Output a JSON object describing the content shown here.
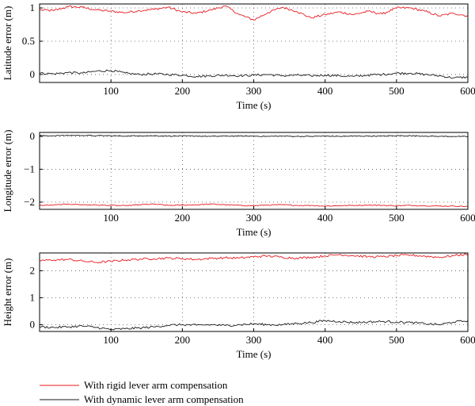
{
  "chart_data": [
    {
      "type": "line",
      "title": "",
      "xlabel": "Time (s)",
      "ylabel": "Latitude error (m)",
      "xlim": [
        0,
        600
      ],
      "ylim": [
        -0.12,
        1.06
      ],
      "xticks": [
        100,
        200,
        300,
        400,
        500,
        600
      ],
      "yticks": [
        0,
        0.5,
        1
      ],
      "yticklabels": [
        "0",
        "0.5",
        "1"
      ],
      "grid": "dotted",
      "series": [
        {
          "name": "With rigid lever arm compensation",
          "color": "#e8191f",
          "x": [
            0,
            20,
            40,
            60,
            80,
            100,
            120,
            140,
            160,
            180,
            200,
            220,
            240,
            260,
            280,
            300,
            320,
            340,
            360,
            380,
            400,
            420,
            440,
            460,
            480,
            500,
            520,
            540,
            560,
            580,
            600
          ],
          "y": [
            0.97,
            0.96,
            1.02,
            1.01,
            0.97,
            0.95,
            0.93,
            0.96,
            0.98,
            1.01,
            0.94,
            0.92,
            0.97,
            1.03,
            0.9,
            0.82,
            0.93,
            1.01,
            0.95,
            0.85,
            0.9,
            0.94,
            0.9,
            0.95,
            0.91,
            1.0,
            1.0,
            0.95,
            0.88,
            0.92,
            0.88
          ]
        },
        {
          "name": "With dynamic lever arm compensation",
          "color": "#1a1a1a",
          "x": [
            0,
            20,
            40,
            60,
            80,
            100,
            120,
            140,
            160,
            180,
            200,
            220,
            240,
            260,
            280,
            300,
            320,
            340,
            360,
            380,
            400,
            420,
            440,
            460,
            480,
            500,
            520,
            540,
            560,
            580,
            600
          ],
          "y": [
            0.02,
            0.01,
            0.03,
            0.02,
            0.05,
            0.06,
            0.02,
            0.0,
            0.01,
            0.0,
            -0.01,
            -0.03,
            -0.02,
            -0.01,
            -0.02,
            -0.01,
            0.0,
            -0.02,
            -0.01,
            -0.02,
            -0.01,
            -0.02,
            -0.03,
            -0.01,
            0.0,
            0.02,
            0.02,
            0.0,
            -0.02,
            -0.05,
            -0.04
          ]
        }
      ]
    },
    {
      "type": "line",
      "title": "",
      "xlabel": "Time (s)",
      "ylabel": "Longitude error (m)",
      "xlim": [
        0,
        600
      ],
      "ylim": [
        -2.22,
        0.12
      ],
      "xticks": [
        100,
        200,
        300,
        400,
        500,
        600
      ],
      "yticks": [
        -2,
        -1,
        0
      ],
      "yticklabels": [
        "−2",
        "−1",
        "0"
      ],
      "grid": "dotted",
      "series": [
        {
          "name": "With rigid lever arm compensation",
          "color": "#e8191f",
          "x": [
            0,
            20,
            40,
            60,
            80,
            100,
            120,
            140,
            160,
            180,
            200,
            220,
            240,
            260,
            280,
            300,
            320,
            340,
            360,
            380,
            400,
            420,
            440,
            460,
            480,
            500,
            520,
            540,
            560,
            580,
            600
          ],
          "y": [
            -2.1,
            -2.09,
            -2.06,
            -2.08,
            -2.09,
            -2.1,
            -2.11,
            -2.08,
            -2.06,
            -2.1,
            -2.09,
            -2.08,
            -2.06,
            -2.08,
            -2.1,
            -2.11,
            -2.09,
            -2.08,
            -2.1,
            -2.1,
            -2.12,
            -2.11,
            -2.1,
            -2.09,
            -2.1,
            -2.11,
            -2.1,
            -2.11,
            -2.12,
            -2.12,
            -2.13
          ]
        },
        {
          "name": "With dynamic lever arm compensation",
          "color": "#1a1a1a",
          "x": [
            0,
            20,
            40,
            60,
            80,
            100,
            120,
            140,
            160,
            180,
            200,
            220,
            240,
            260,
            280,
            300,
            320,
            340,
            360,
            380,
            400,
            420,
            440,
            460,
            480,
            500,
            520,
            540,
            560,
            580,
            600
          ],
          "y": [
            0.02,
            0.02,
            0.03,
            0.03,
            0.02,
            0.02,
            0.01,
            0.02,
            0.02,
            0.01,
            0.01,
            0.01,
            0.0,
            0.01,
            0.01,
            0.01,
            0.0,
            0.01,
            0.0,
            0.0,
            0.01,
            0.0,
            0.01,
            0.01,
            0.01,
            0.02,
            0.02,
            0.01,
            0.0,
            0.0,
            -0.01
          ]
        }
      ]
    },
    {
      "type": "line",
      "title": "",
      "xlabel": "Time (s)",
      "ylabel": "Height error (m)",
      "xlim": [
        0,
        600
      ],
      "ylim": [
        -0.25,
        2.66
      ],
      "xticks": [
        100,
        200,
        300,
        400,
        500,
        600
      ],
      "yticks": [
        0,
        1,
        2
      ],
      "yticklabels": [
        "0",
        "1",
        "2"
      ],
      "grid": "dotted",
      "series": [
        {
          "name": "With rigid lever arm compensation",
          "color": "#e8191f",
          "x": [
            0,
            20,
            40,
            60,
            80,
            100,
            120,
            140,
            160,
            180,
            200,
            220,
            240,
            260,
            280,
            300,
            320,
            340,
            360,
            380,
            400,
            420,
            440,
            460,
            480,
            500,
            520,
            540,
            560,
            580,
            600
          ],
          "y": [
            2.38,
            2.4,
            2.42,
            2.36,
            2.31,
            2.35,
            2.4,
            2.43,
            2.45,
            2.47,
            2.45,
            2.42,
            2.46,
            2.48,
            2.47,
            2.52,
            2.55,
            2.5,
            2.47,
            2.5,
            2.55,
            2.6,
            2.56,
            2.52,
            2.52,
            2.56,
            2.58,
            2.54,
            2.5,
            2.56,
            2.62
          ]
        },
        {
          "name": "With dynamic lever arm compensation",
          "color": "#1a1a1a",
          "x": [
            0,
            20,
            40,
            60,
            80,
            100,
            120,
            140,
            160,
            180,
            200,
            220,
            240,
            260,
            280,
            300,
            320,
            340,
            360,
            380,
            400,
            420,
            440,
            460,
            480,
            500,
            520,
            540,
            560,
            580,
            600
          ],
          "y": [
            -0.08,
            -0.1,
            -0.08,
            -0.05,
            -0.1,
            -0.18,
            -0.15,
            -0.12,
            -0.08,
            -0.02,
            0.0,
            -0.02,
            0.0,
            -0.03,
            0.0,
            0.03,
            0.0,
            0.0,
            0.05,
            0.08,
            0.15,
            0.12,
            0.08,
            0.1,
            0.12,
            0.1,
            0.08,
            0.04,
            0.0,
            0.1,
            0.15
          ]
        }
      ]
    }
  ],
  "legend": {
    "placement": "bottom-left",
    "items": [
      {
        "label": "With rigid lever arm compensation",
        "color": "#e8191f"
      },
      {
        "label": "With dynamic lever arm compensation",
        "color": "#1a1a1a"
      }
    ]
  }
}
